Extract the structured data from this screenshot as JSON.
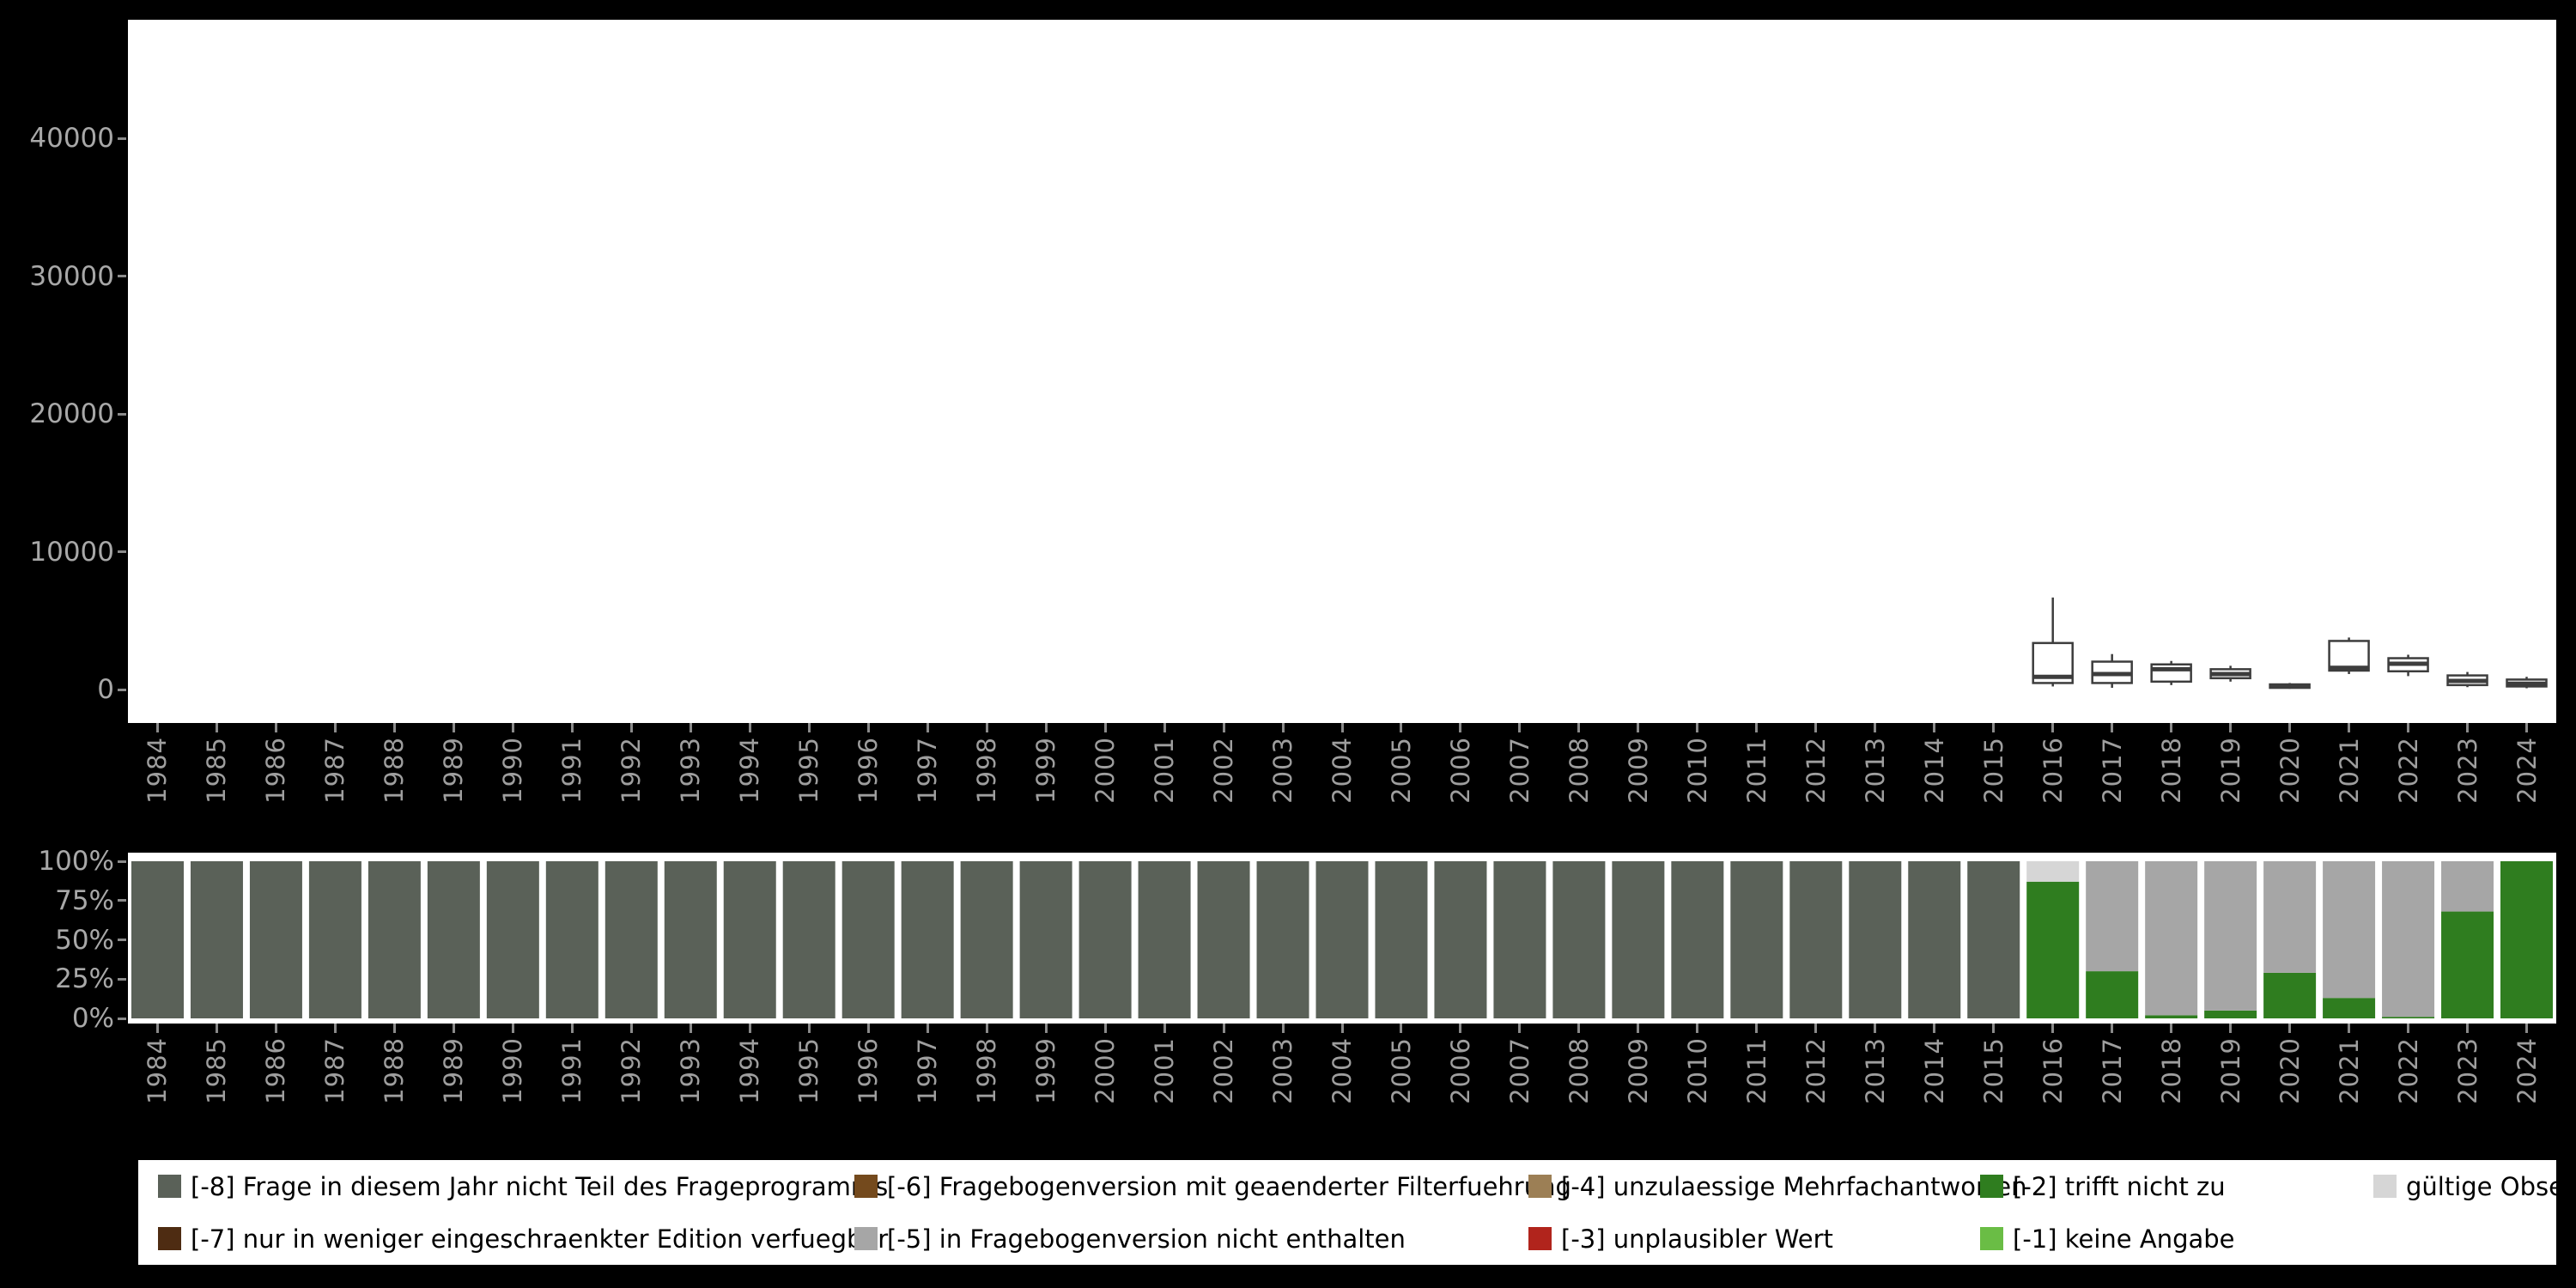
{
  "page": {
    "background": "#000000",
    "panel_background": "#ffffff"
  },
  "colors": {
    "axis_text": "#a8a8a8",
    "tick": "#8a8a8a",
    "box_stroke": "#3d3d3d",
    "legend_text": "#000000",
    "categories": {
      "-8": "#5a6158",
      "-7": "#4e2c12",
      "-6": "#744a1d",
      "-5": "#a6a6a6",
      "-4": "#9c7f55",
      "-3": "#b1241c",
      "-2": "#2f7d1f",
      "-1": "#6abd45",
      "valid": "#d6d6d6"
    }
  },
  "years": [
    1984,
    1985,
    1986,
    1987,
    1988,
    1989,
    1990,
    1991,
    1992,
    1993,
    1994,
    1995,
    1996,
    1997,
    1998,
    1999,
    2000,
    2001,
    2002,
    2003,
    2004,
    2005,
    2006,
    2007,
    2008,
    2009,
    2010,
    2011,
    2012,
    2013,
    2014,
    2015,
    2016,
    2017,
    2018,
    2019,
    2020,
    2021,
    2022,
    2023,
    2024
  ],
  "chart_data": [
    {
      "type": "boxplot",
      "title": "",
      "xlabel": "",
      "ylabel": "",
      "ylim": [
        -2400,
        48600
      ],
      "yticks": [
        {
          "value": 0,
          "label": "0"
        },
        {
          "value": 10000,
          "label": "10000"
        },
        {
          "value": 20000,
          "label": "20000"
        },
        {
          "value": 30000,
          "label": "30000"
        },
        {
          "value": 40000,
          "label": "40000"
        }
      ],
      "x_categories": "years",
      "grid": false,
      "boxes": [
        {
          "year": 2016,
          "low": 250,
          "q1": 500,
          "median": 950,
          "q3": 3400,
          "high": 6700
        },
        {
          "year": 2017,
          "low": 150,
          "q1": 500,
          "median": 1150,
          "q3": 2050,
          "high": 2600
        },
        {
          "year": 2018,
          "low": 350,
          "q1": 600,
          "median": 1500,
          "q3": 1850,
          "high": 2100
        },
        {
          "year": 2019,
          "low": 600,
          "q1": 850,
          "median": 1150,
          "q3": 1500,
          "high": 1750
        },
        {
          "year": 2020,
          "low": 80,
          "q1": 150,
          "median": 250,
          "q3": 400,
          "high": 500
        },
        {
          "year": 2021,
          "low": 1150,
          "q1": 1400,
          "median": 1600,
          "q3": 3550,
          "high": 3800
        },
        {
          "year": 2022,
          "low": 1000,
          "q1": 1350,
          "median": 1900,
          "q3": 2300,
          "high": 2550
        },
        {
          "year": 2023,
          "low": 200,
          "q1": 350,
          "median": 650,
          "q3": 1050,
          "high": 1300
        },
        {
          "year": 2024,
          "low": 120,
          "q1": 250,
          "median": 450,
          "q3": 750,
          "high": 950
        }
      ]
    },
    {
      "type": "bar",
      "subtype": "stacked-percent",
      "title": "",
      "xlabel": "",
      "ylabel": "",
      "ylim": [
        0,
        100
      ],
      "yticks": [
        {
          "value": 0,
          "label": "0%"
        },
        {
          "value": 25,
          "label": "25%"
        },
        {
          "value": 50,
          "label": "50%"
        },
        {
          "value": 75,
          "label": "75%"
        },
        {
          "value": 100,
          "label": "100%"
        }
      ],
      "x_categories": "years",
      "grid": false,
      "bars": [
        {
          "year": 1984,
          "segments": [
            {
              "key": "-8",
              "pct": 100
            }
          ]
        },
        {
          "year": 1985,
          "segments": [
            {
              "key": "-8",
              "pct": 100
            }
          ]
        },
        {
          "year": 1986,
          "segments": [
            {
              "key": "-8",
              "pct": 100
            }
          ]
        },
        {
          "year": 1987,
          "segments": [
            {
              "key": "-8",
              "pct": 100
            }
          ]
        },
        {
          "year": 1988,
          "segments": [
            {
              "key": "-8",
              "pct": 100
            }
          ]
        },
        {
          "year": 1989,
          "segments": [
            {
              "key": "-8",
              "pct": 100
            }
          ]
        },
        {
          "year": 1990,
          "segments": [
            {
              "key": "-8",
              "pct": 100
            }
          ]
        },
        {
          "year": 1991,
          "segments": [
            {
              "key": "-8",
              "pct": 100
            }
          ]
        },
        {
          "year": 1992,
          "segments": [
            {
              "key": "-8",
              "pct": 100
            }
          ]
        },
        {
          "year": 1993,
          "segments": [
            {
              "key": "-8",
              "pct": 100
            }
          ]
        },
        {
          "year": 1994,
          "segments": [
            {
              "key": "-8",
              "pct": 100
            }
          ]
        },
        {
          "year": 1995,
          "segments": [
            {
              "key": "-8",
              "pct": 100
            }
          ]
        },
        {
          "year": 1996,
          "segments": [
            {
              "key": "-8",
              "pct": 100
            }
          ]
        },
        {
          "year": 1997,
          "segments": [
            {
              "key": "-8",
              "pct": 100
            }
          ]
        },
        {
          "year": 1998,
          "segments": [
            {
              "key": "-8",
              "pct": 100
            }
          ]
        },
        {
          "year": 1999,
          "segments": [
            {
              "key": "-8",
              "pct": 100
            }
          ]
        },
        {
          "year": 2000,
          "segments": [
            {
              "key": "-8",
              "pct": 100
            }
          ]
        },
        {
          "year": 2001,
          "segments": [
            {
              "key": "-8",
              "pct": 100
            }
          ]
        },
        {
          "year": 2002,
          "segments": [
            {
              "key": "-8",
              "pct": 100
            }
          ]
        },
        {
          "year": 2003,
          "segments": [
            {
              "key": "-8",
              "pct": 100
            }
          ]
        },
        {
          "year": 2004,
          "segments": [
            {
              "key": "-8",
              "pct": 100
            }
          ]
        },
        {
          "year": 2005,
          "segments": [
            {
              "key": "-8",
              "pct": 100
            }
          ]
        },
        {
          "year": 2006,
          "segments": [
            {
              "key": "-8",
              "pct": 100
            }
          ]
        },
        {
          "year": 2007,
          "segments": [
            {
              "key": "-8",
              "pct": 100
            }
          ]
        },
        {
          "year": 2008,
          "segments": [
            {
              "key": "-8",
              "pct": 100
            }
          ]
        },
        {
          "year": 2009,
          "segments": [
            {
              "key": "-8",
              "pct": 100
            }
          ]
        },
        {
          "year": 2010,
          "segments": [
            {
              "key": "-8",
              "pct": 100
            }
          ]
        },
        {
          "year": 2011,
          "segments": [
            {
              "key": "-8",
              "pct": 100
            }
          ]
        },
        {
          "year": 2012,
          "segments": [
            {
              "key": "-8",
              "pct": 100
            }
          ]
        },
        {
          "year": 2013,
          "segments": [
            {
              "key": "-8",
              "pct": 100
            }
          ]
        },
        {
          "year": 2014,
          "segments": [
            {
              "key": "-8",
              "pct": 100
            }
          ]
        },
        {
          "year": 2015,
          "segments": [
            {
              "key": "-8",
              "pct": 100
            }
          ]
        },
        {
          "year": 2016,
          "segments": [
            {
              "key": "-2",
              "pct": 87
            },
            {
              "key": "valid",
              "pct": 13
            }
          ]
        },
        {
          "year": 2017,
          "segments": [
            {
              "key": "-2",
              "pct": 30
            },
            {
              "key": "-5",
              "pct": 70
            }
          ]
        },
        {
          "year": 2018,
          "segments": [
            {
              "key": "-2",
              "pct": 2
            },
            {
              "key": "-5",
              "pct": 98
            }
          ]
        },
        {
          "year": 2019,
          "segments": [
            {
              "key": "-2",
              "pct": 5
            },
            {
              "key": "-5",
              "pct": 95
            }
          ]
        },
        {
          "year": 2020,
          "segments": [
            {
              "key": "-2",
              "pct": 29
            },
            {
              "key": "-5",
              "pct": 71
            }
          ]
        },
        {
          "year": 2021,
          "segments": [
            {
              "key": "-2",
              "pct": 13
            },
            {
              "key": "-5",
              "pct": 87
            }
          ]
        },
        {
          "year": 2022,
          "segments": [
            {
              "key": "-2",
              "pct": 1
            },
            {
              "key": "-5",
              "pct": 99
            }
          ]
        },
        {
          "year": 2023,
          "segments": [
            {
              "key": "-2",
              "pct": 68
            },
            {
              "key": "-5",
              "pct": 32
            }
          ]
        },
        {
          "year": 2024,
          "segments": [
            {
              "key": "-2",
              "pct": 100
            }
          ]
        }
      ]
    }
  ],
  "legend": {
    "position": "bottom",
    "items": [
      {
        "key": "-8",
        "label": "[-8] Frage in diesem Jahr nicht Teil des Frageprogramms",
        "row": 1,
        "col": 1
      },
      {
        "key": "-6",
        "label": "[-6] Fragebogenversion mit geaenderter Filterfuehrung",
        "row": 1,
        "col": 2
      },
      {
        "key": "-4",
        "label": "[-4] unzulaessige Mehrfachantworten",
        "row": 1,
        "col": 3
      },
      {
        "key": "-2",
        "label": "[-2] trifft nicht zu",
        "row": 1,
        "col": 4
      },
      {
        "key": "valid",
        "label": "gültige Observationen",
        "row": 1,
        "col": 5
      },
      {
        "key": "-7",
        "label": "[-7] nur in weniger eingeschraenkter Edition verfuegbar",
        "row": 2,
        "col": 1
      },
      {
        "key": "-5",
        "label": "[-5] in Fragebogenversion nicht enthalten",
        "row": 2,
        "col": 2
      },
      {
        "key": "-3",
        "label": "[-3] unplausibler Wert",
        "row": 2,
        "col": 3
      },
      {
        "key": "-1",
        "label": "[-1] keine Angabe",
        "row": 2,
        "col": 4
      }
    ]
  }
}
